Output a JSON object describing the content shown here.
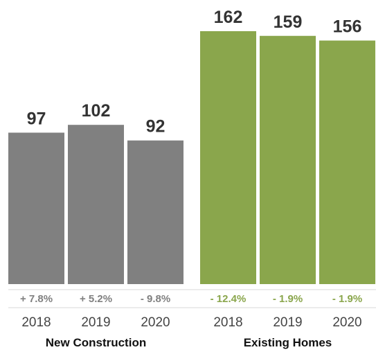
{
  "chart_data": {
    "type": "bar",
    "title": "",
    "xlabel": "",
    "ylabel": "",
    "ylim": [
      0,
      162
    ],
    "grid": false,
    "legend": "none",
    "groups": [
      {
        "name": "New Construction",
        "color": "#808080",
        "pct_color": "#808080",
        "categories": [
          "2018",
          "2019",
          "2020"
        ],
        "values": [
          97,
          102,
          92
        ],
        "value_labels": [
          "97",
          "102",
          "92"
        ],
        "changes": [
          "+ 7.8%",
          "+ 5.2%",
          "- 9.8%"
        ]
      },
      {
        "name": "Existing Homes",
        "color": "#8aa64c",
        "pct_color": "#8aa64c",
        "categories": [
          "2018",
          "2019",
          "2020"
        ],
        "values": [
          162,
          159,
          156
        ],
        "value_labels": [
          "162",
          "159",
          "156"
        ],
        "changes": [
          "- 12.4%",
          "- 1.9%",
          "- 1.9%"
        ]
      }
    ]
  }
}
